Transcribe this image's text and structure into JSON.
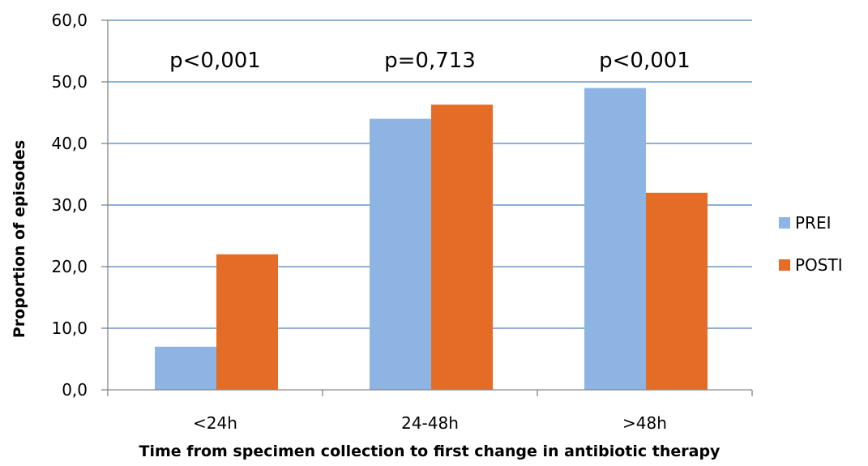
{
  "chart_data": {
    "type": "bar",
    "title": "",
    "xlabel": "Time from specimen collection to first change in antibiotic therapy",
    "ylabel": "Proportion of episodes",
    "categories": [
      "<24h",
      "24-48h",
      ">48h"
    ],
    "series": [
      {
        "name": "PREI",
        "color": "#8EB4E3",
        "values": [
          7.0,
          44.0,
          49.0
        ]
      },
      {
        "name": "POSTI",
        "color": "#E46C26",
        "values": [
          22.0,
          46.3,
          32.0
        ]
      }
    ],
    "ylim": [
      0,
      60
    ],
    "yticks": [
      "0,0",
      "10,0",
      "20,0",
      "30,0",
      "40,0",
      "50,0",
      "60,0"
    ],
    "annotations": [
      "p<0,001",
      "p=0,713",
      "p<0,001"
    ],
    "grid": true,
    "gridline_color": "#4F81BD",
    "legend_position": "right"
  }
}
